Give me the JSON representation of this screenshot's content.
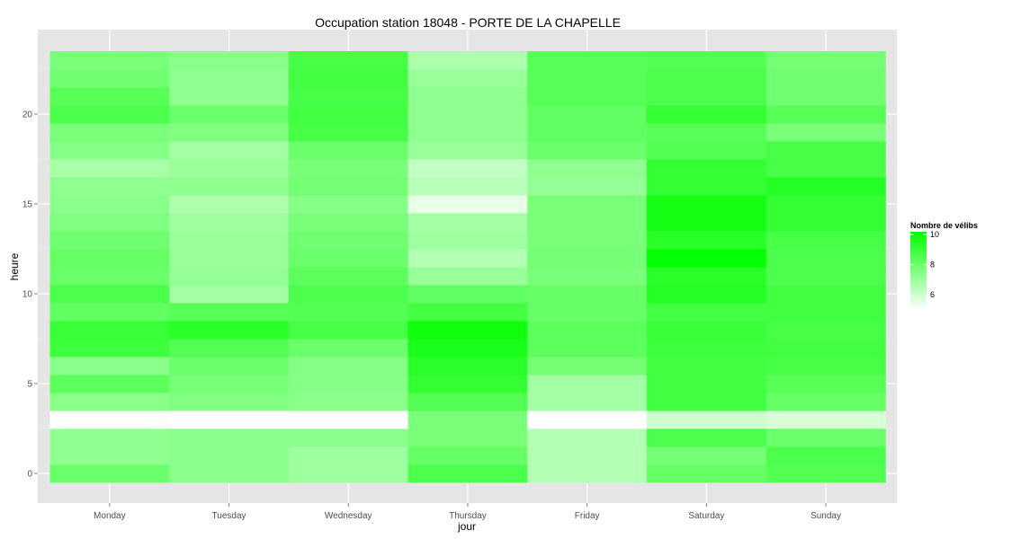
{
  "chart_data": {
    "type": "heatmap",
    "title": "Occupation station 18048 - PORTE DE LA CHAPELLE",
    "xlabel": "jour",
    "ylabel": "heure",
    "categories": [
      "Monday",
      "Tuesday",
      "Wednesday",
      "Thursday",
      "Friday",
      "Saturday",
      "Sunday"
    ],
    "hours": [
      0,
      1,
      2,
      3,
      4,
      5,
      6,
      7,
      8,
      9,
      10,
      11,
      12,
      13,
      14,
      15,
      16,
      17,
      18,
      19,
      20,
      21,
      22,
      23
    ],
    "ylim": [
      -0.5,
      23.5
    ],
    "y_ticks": [
      0,
      5,
      10,
      15,
      20
    ],
    "grid": true,
    "legend": {
      "title": "Nombre de vélibs",
      "position": "right",
      "min": 5,
      "max": 10,
      "ticks": [
        6,
        8,
        10
      ]
    },
    "colors": {
      "low": "#ffffff",
      "high": "#00ff00",
      "panel": "#e5e5e5",
      "grid": "#ffffff"
    },
    "values": {
      "Monday": [
        7.9,
        7.2,
        7.2,
        5.1,
        7.3,
        8.2,
        7.3,
        8.8,
        8.9,
        8.1,
        8.5,
        7.9,
        8.0,
        7.8,
        7.5,
        7.3,
        7.2,
        6.7,
        7.4,
        7.6,
        8.5,
        8.3,
        7.8,
        7.6
      ],
      "Tuesday": [
        7.3,
        7.3,
        7.3,
        5.0,
        7.5,
        7.6,
        7.9,
        8.4,
        9.2,
        8.3,
        6.8,
        7.1,
        7.0,
        7.0,
        6.9,
        6.6,
        7.2,
        7.0,
        6.8,
        7.5,
        7.9,
        7.2,
        7.2,
        7.3
      ],
      "Wednesday": [
        6.9,
        6.9,
        7.3,
        5.0,
        7.3,
        7.4,
        7.4,
        7.9,
        8.6,
        8.4,
        8.5,
        8.2,
        7.9,
        7.8,
        7.6,
        7.4,
        7.7,
        7.6,
        7.9,
        8.6,
        8.7,
        8.6,
        8.7,
        8.6
      ],
      "Thursday": [
        8.5,
        8.0,
        7.6,
        7.6,
        8.4,
        9.0,
        9.2,
        9.5,
        9.7,
        8.7,
        8.1,
        7.0,
        6.5,
        6.9,
        6.8,
        5.5,
        6.4,
        6.2,
        7.0,
        7.2,
        7.2,
        7.2,
        7.0,
        6.6
      ],
      "Friday": [
        6.5,
        6.5,
        6.5,
        5.0,
        6.8,
        6.8,
        7.7,
        8.2,
        8.2,
        8.0,
        8.0,
        7.6,
        7.7,
        7.6,
        7.6,
        7.6,
        7.1,
        7.2,
        7.9,
        8.1,
        8.1,
        8.3,
        8.3,
        8.3
      ],
      "Saturday": [
        8.0,
        7.7,
        8.5,
        6.0,
        8.7,
        8.7,
        8.7,
        8.8,
        8.9,
        8.7,
        9.3,
        9.2,
        9.9,
        9.2,
        9.6,
        9.6,
        9.0,
        9.0,
        8.4,
        8.3,
        9.0,
        8.5,
        8.5,
        8.4
      ],
      "Sunday": [
        8.4,
        8.5,
        7.9,
        5.8,
        8.0,
        8.3,
        8.6,
        8.7,
        8.6,
        8.7,
        8.7,
        8.5,
        8.5,
        8.6,
        9.0,
        9.0,
        9.3,
        8.6,
        8.6,
        7.6,
        8.3,
        7.8,
        7.8,
        7.7
      ]
    }
  }
}
